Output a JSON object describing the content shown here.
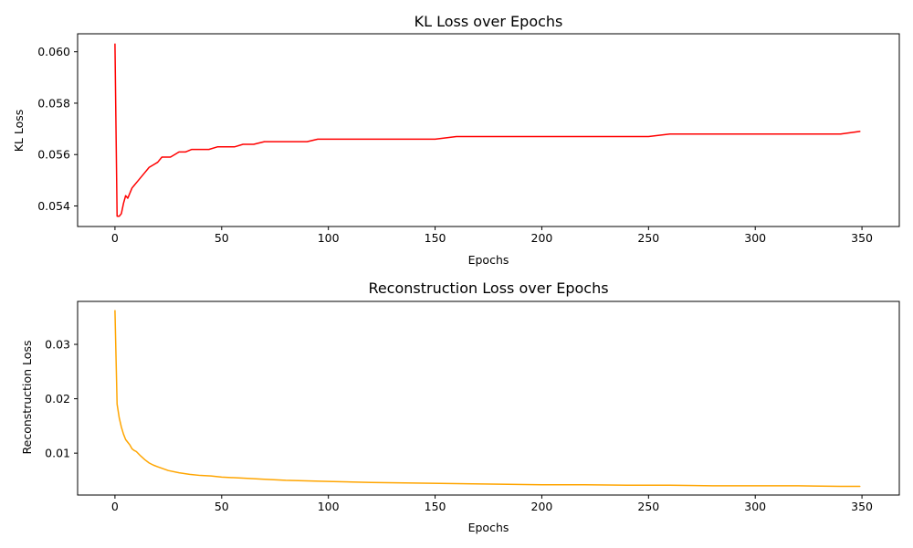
{
  "chart_data": [
    {
      "type": "line",
      "title": "KL Loss over Epochs",
      "xlabel": "Epochs",
      "ylabel": "KL Loss",
      "xlim": [
        -17.5,
        367.5
      ],
      "ylim": [
        0.0532,
        0.0607
      ],
      "xticks": [
        0,
        50,
        100,
        150,
        200,
        250,
        300,
        350
      ],
      "yticks": [
        0.054,
        0.056,
        0.058,
        0.06
      ],
      "ytick_labels": [
        "0.054",
        "0.056",
        "0.058",
        "0.060"
      ],
      "grid": false,
      "legend": "none",
      "color": "#ff0000",
      "series": [
        {
          "x": [
            0,
            1,
            2,
            3,
            4,
            5,
            6,
            7,
            8,
            9,
            10,
            12,
            14,
            16,
            18,
            20,
            22,
            24,
            26,
            28,
            30,
            33,
            36,
            40,
            44,
            48,
            52,
            56,
            60,
            65,
            70,
            75,
            80,
            85,
            90,
            95,
            100,
            110,
            120,
            130,
            140,
            150,
            160,
            170,
            180,
            190,
            200,
            210,
            220,
            230,
            240,
            250,
            260,
            270,
            280,
            290,
            300,
            310,
            320,
            330,
            340,
            349
          ],
          "y": [
            0.0603,
            0.0536,
            0.0536,
            0.0537,
            0.0541,
            0.0544,
            0.0543,
            0.0545,
            0.0547,
            0.0548,
            0.0549,
            0.0551,
            0.0553,
            0.0555,
            0.0556,
            0.0557,
            0.0559,
            0.0559,
            0.0559,
            0.056,
            0.0561,
            0.0561,
            0.0562,
            0.0562,
            0.0562,
            0.0563,
            0.0563,
            0.0563,
            0.0564,
            0.0564,
            0.0565,
            0.0565,
            0.0565,
            0.0565,
            0.0565,
            0.0566,
            0.0566,
            0.0566,
            0.0566,
            0.0566,
            0.0566,
            0.0566,
            0.0567,
            0.0567,
            0.0567,
            0.0567,
            0.0567,
            0.0567,
            0.0567,
            0.0567,
            0.0567,
            0.0567,
            0.0568,
            0.0568,
            0.0568,
            0.0568,
            0.0568,
            0.0568,
            0.0568,
            0.0568,
            0.0568,
            0.0569
          ]
        }
      ]
    },
    {
      "type": "line",
      "title": "Reconstruction Loss over Epochs",
      "xlabel": "Epochs",
      "ylabel": "Reconstruction Loss",
      "xlim": [
        -17.5,
        367.5
      ],
      "ylim": [
        0.0023,
        0.0379
      ],
      "xticks": [
        0,
        50,
        100,
        150,
        200,
        250,
        300,
        350
      ],
      "yticks": [
        0.01,
        0.02,
        0.03
      ],
      "ytick_labels": [
        "0.01",
        "0.02",
        "0.03"
      ],
      "grid": false,
      "legend": "none",
      "color": "#ffa500",
      "series": [
        {
          "x": [
            0,
            1,
            2,
            3,
            4,
            5,
            6,
            7,
            8,
            9,
            10,
            12,
            14,
            16,
            18,
            20,
            25,
            30,
            35,
            40,
            45,
            50,
            60,
            70,
            80,
            90,
            100,
            120,
            140,
            160,
            180,
            200,
            220,
            240,
            260,
            280,
            300,
            320,
            340,
            349
          ],
          "y": [
            0.0362,
            0.019,
            0.0165,
            0.0148,
            0.0135,
            0.0125,
            0.012,
            0.0115,
            0.0108,
            0.0105,
            0.0103,
            0.0095,
            0.0088,
            0.0082,
            0.0078,
            0.0075,
            0.0068,
            0.0064,
            0.0061,
            0.0059,
            0.0058,
            0.0056,
            0.0054,
            0.0052,
            0.005,
            0.0049,
            0.0048,
            0.0046,
            0.0045,
            0.0044,
            0.0043,
            0.0042,
            0.0042,
            0.0041,
            0.0041,
            0.004,
            0.004,
            0.004,
            0.0039,
            0.0039
          ]
        }
      ]
    }
  ]
}
